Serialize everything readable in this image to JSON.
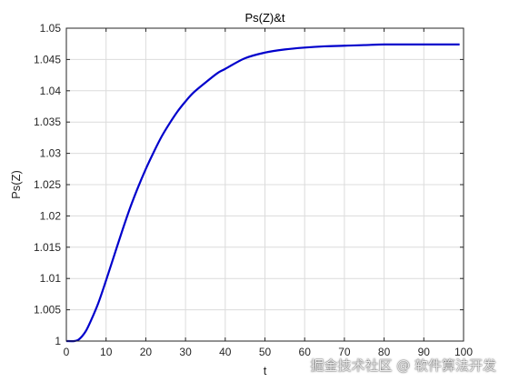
{
  "chart_data": {
    "type": "line",
    "title": "Ps(Z)&t",
    "xlabel": "t",
    "ylabel": "Ps(Z)",
    "xlim": [
      0,
      100
    ],
    "ylim": [
      1,
      1.05
    ],
    "xticks": [
      "0",
      "10",
      "20",
      "30",
      "40",
      "50",
      "60",
      "70",
      "80",
      "90",
      "100"
    ],
    "yticks": [
      "1",
      "1.005",
      "1.01",
      "1.015",
      "1.02",
      "1.025",
      "1.03",
      "1.035",
      "1.04",
      "1.045",
      "1.05"
    ],
    "grid": true,
    "line_color": "#0000CC",
    "series": [
      {
        "x": [
          0,
          2,
          3,
          4,
          5,
          6,
          8,
          10,
          12,
          14,
          16,
          18,
          20,
          22,
          24,
          26,
          28,
          30,
          32,
          35,
          38,
          40,
          45,
          50,
          55,
          60,
          65,
          70,
          75,
          80,
          85,
          90,
          95,
          99
        ],
        "values": [
          1.0,
          1.0,
          1.0002,
          1.0008,
          1.0017,
          1.003,
          1.006,
          1.0097,
          1.0136,
          1.0175,
          1.0212,
          1.0245,
          1.0275,
          1.0302,
          1.0327,
          1.0348,
          1.0367,
          1.0383,
          1.0397,
          1.0413,
          1.0428,
          1.0435,
          1.0452,
          1.0461,
          1.0466,
          1.0469,
          1.0471,
          1.0472,
          1.0473,
          1.0474,
          1.0474,
          1.0474,
          1.0474,
          1.0474
        ]
      }
    ]
  },
  "watermark": "掘金技术社区 @ 软件算法开发"
}
